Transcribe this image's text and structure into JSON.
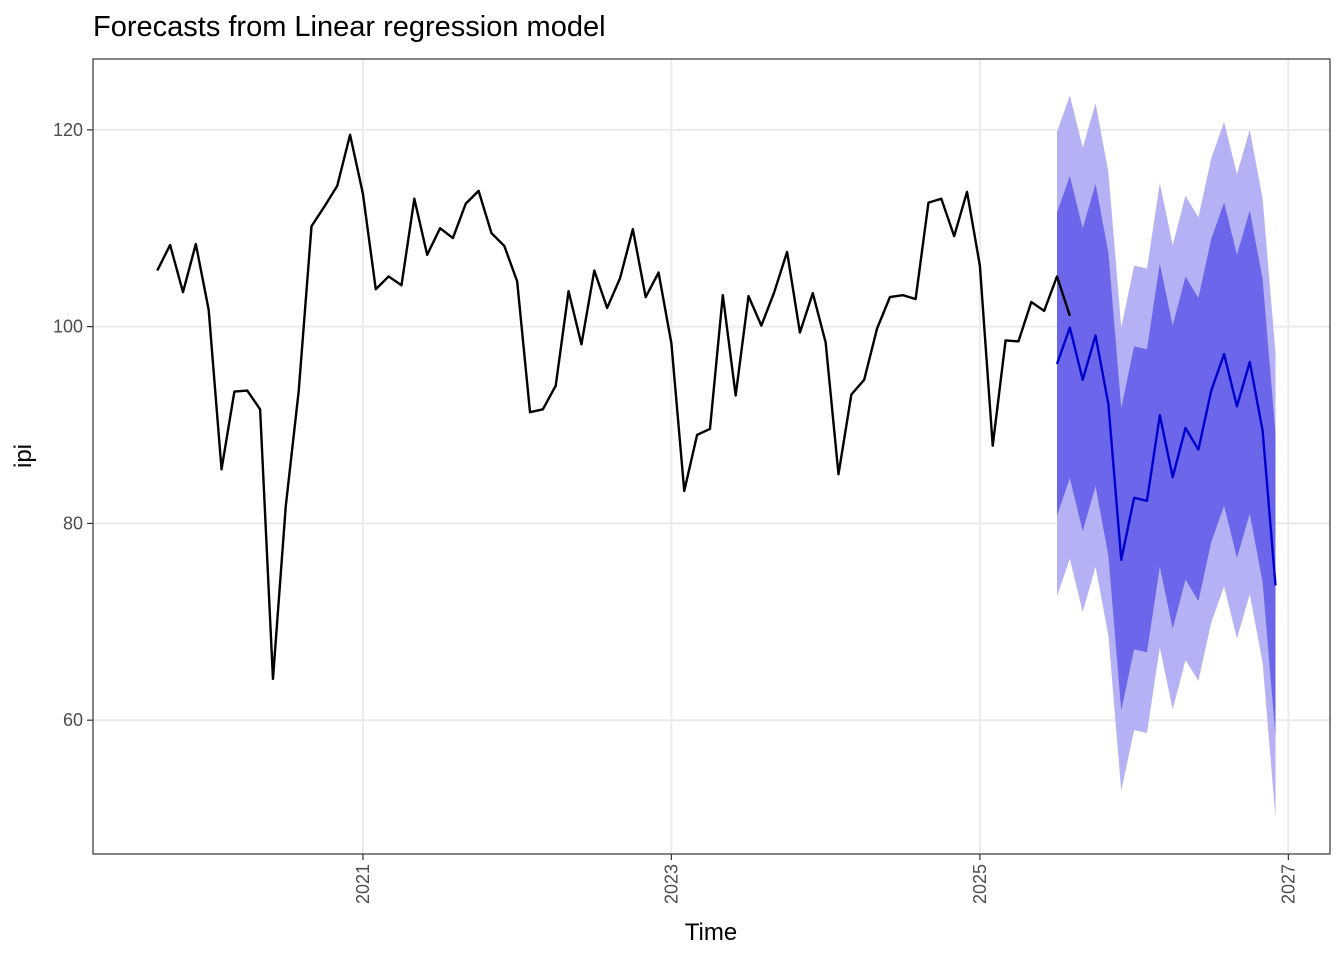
{
  "chart_data": {
    "type": "line",
    "title": "Forecasts from Linear regression model",
    "xlabel": "Time",
    "ylabel": "ipi",
    "xlim": [
      2019.25,
      2027.27
    ],
    "ylim": [
      46.4,
      127.2
    ],
    "x_ticks": [
      2021,
      2023,
      2025,
      2027
    ],
    "y_ticks": [
      60,
      80,
      100,
      120
    ],
    "grid": true,
    "legend": "none",
    "colors": {
      "history": "#000000",
      "forecast": "#0000cc",
      "band80": "#6b66ea",
      "band95": "#b4b2f4",
      "grid": "#ebebeb",
      "panel_border": "#333333"
    },
    "series": [
      {
        "start": 2019.6667,
        "step": 0.083333,
        "values": [
          105.7,
          108.3,
          103.5,
          108.4,
          101.7,
          85.5,
          93.4,
          93.5,
          91.6,
          64.2,
          81.8,
          93.4,
          110.2,
          112.2,
          114.3,
          119.5,
          113.5,
          103.8,
          105.1,
          104.2,
          113.0,
          107.3,
          110.0,
          109.0,
          112.5,
          113.8,
          109.5,
          108.2,
          104.6,
          91.3,
          91.6,
          94.0,
          103.6,
          98.2,
          105.7,
          101.9,
          104.9,
          109.9,
          103.0,
          105.5,
          98.3,
          83.3,
          89.0,
          89.6,
          103.2,
          93.0,
          103.1,
          100.1,
          103.5,
          107.6,
          99.4,
          103.4,
          98.4,
          85.0,
          93.1,
          94.6,
          99.8,
          103.0,
          103.2,
          102.8,
          112.6,
          113.0,
          109.2,
          113.7,
          106.2,
          87.9,
          98.6,
          98.5,
          102.5,
          101.6,
          105.1,
          101.1
        ]
      },
      {
        "start": 2025.5,
        "step": 0.083333,
        "mean": [
          96.2,
          99.9,
          94.6,
          99.1,
          92.1,
          76.3,
          82.6,
          82.3,
          91.0,
          84.7,
          89.7,
          87.5,
          93.5,
          97.2,
          91.9,
          96.4,
          89.4,
          73.7
        ],
        "lo80": [
          80.8,
          84.6,
          79.2,
          83.8,
          76.7,
          61.0,
          67.2,
          66.9,
          75.6,
          69.3,
          74.3,
          72.1,
          78.1,
          81.8,
          76.5,
          81.0,
          74.0,
          58.3
        ],
        "hi80": [
          111.6,
          115.3,
          110.0,
          114.5,
          107.5,
          91.7,
          98.0,
          97.7,
          106.4,
          100.1,
          105.1,
          102.9,
          108.9,
          112.6,
          107.3,
          111.8,
          104.8,
          89.1
        ],
        "lo95": [
          72.6,
          76.4,
          71.0,
          75.6,
          68.6,
          52.8,
          59.0,
          58.7,
          67.4,
          61.1,
          66.1,
          64.0,
          69.9,
          73.6,
          68.3,
          72.8,
          65.8,
          50.1
        ],
        "hi95": [
          119.8,
          123.5,
          118.2,
          122.7,
          115.7,
          99.9,
          106.2,
          105.9,
          114.6,
          108.3,
          113.3,
          111.1,
          117.1,
          120.8,
          115.5,
          120.0,
          113.0,
          97.3
        ]
      }
    ]
  }
}
